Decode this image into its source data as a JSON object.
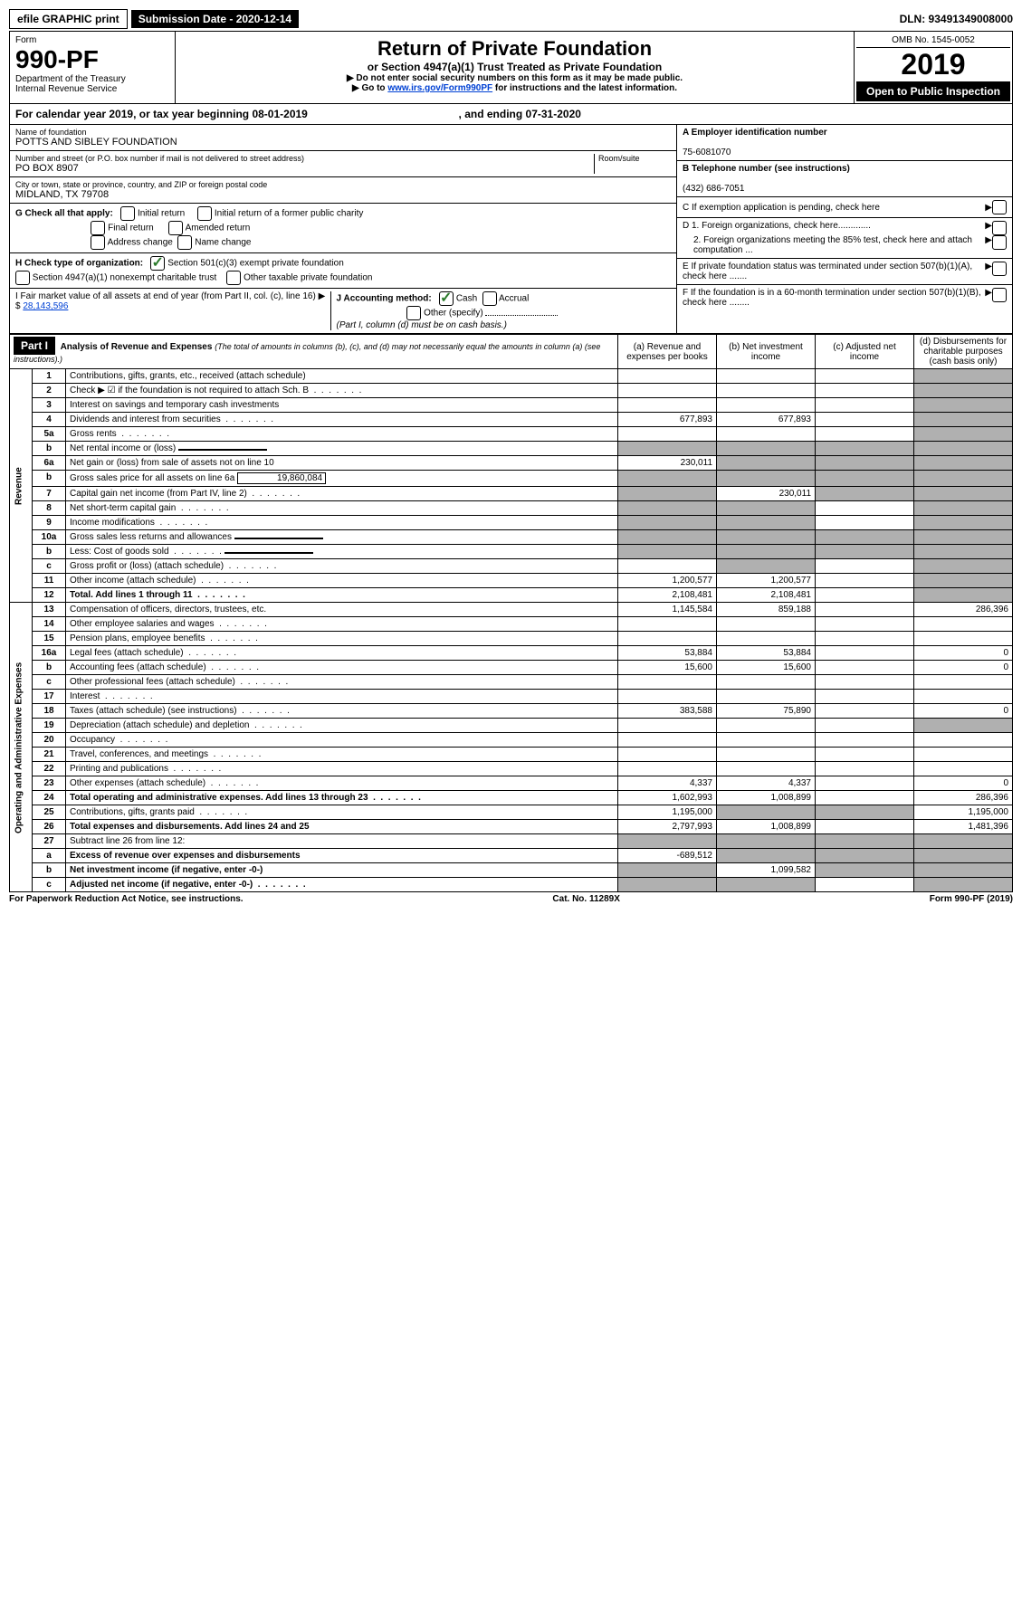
{
  "topbar": {
    "efile": "efile GRAPHIC print",
    "subdate_label": "Submission Date - 2020-12-14",
    "dln": "DLN: 93491349008000"
  },
  "header": {
    "form_label": "Form",
    "form_num": "990-PF",
    "dept": "Department of the Treasury",
    "irs": "Internal Revenue Service",
    "title": "Return of Private Foundation",
    "subtitle": "or Section 4947(a)(1) Trust Treated as Private Foundation",
    "note1": "▶ Do not enter social security numbers on this form as it may be made public.",
    "note2_pre": "▶ Go to ",
    "note2_link": "www.irs.gov/Form990PF",
    "note2_post": " for instructions and the latest information.",
    "omb": "OMB No. 1545-0052",
    "year": "2019",
    "open": "Open to Public Inspection"
  },
  "calendar": {
    "text_pre": "For calendar year 2019, or tax year beginning ",
    "begin": "08-01-2019",
    "mid": " , and ending ",
    "end": "07-31-2020"
  },
  "info": {
    "name_label": "Name of foundation",
    "name": "POTTS AND SIBLEY FOUNDATION",
    "addr_label": "Number and street (or P.O. box number if mail is not delivered to street address)",
    "room_label": "Room/suite",
    "addr": "PO BOX 8907",
    "city_label": "City or town, state or province, country, and ZIP or foreign postal code",
    "city": "MIDLAND, TX  79708",
    "A_label": "A Employer identification number",
    "A_val": "75-6081070",
    "B_label": "B Telephone number (see instructions)",
    "B_val": "(432) 686-7051",
    "C_label": "C If exemption application is pending, check here",
    "D1_label": "D 1. Foreign organizations, check here.............",
    "D2_label": "2. Foreign organizations meeting the 85% test, check here and attach computation ...",
    "E_label": "E If private foundation status was terminated under section 507(b)(1)(A), check here .......",
    "F_label": "F If the foundation is in a 60-month termination under section 507(b)(1)(B), check here ........"
  },
  "G": {
    "label": "G Check all that apply:",
    "opts": [
      "Initial return",
      "Final return",
      "Address change",
      "Initial return of a former public charity",
      "Amended return",
      "Name change"
    ]
  },
  "H": {
    "label": "H Check type of organization:",
    "opt1": "Section 501(c)(3) exempt private foundation",
    "opt2": "Section 4947(a)(1) nonexempt charitable trust",
    "opt3": "Other taxable private foundation"
  },
  "I": {
    "label": "I Fair market value of all assets at end of year (from Part II, col. (c), line 16) ▶ $",
    "val": "28,143,596"
  },
  "J": {
    "label": "J Accounting method:",
    "cash": "Cash",
    "accrual": "Accrual",
    "other": "Other (specify)",
    "note": "(Part I, column (d) must be on cash basis.)"
  },
  "part1": {
    "label": "Part I",
    "title": "Analysis of Revenue and Expenses",
    "title_note": "(The total of amounts in columns (b), (c), and (d) may not necessarily equal the amounts in column (a) (see instructions).)",
    "cols": {
      "a": "(a) Revenue and expenses per books",
      "b": "(b) Net investment income",
      "c": "(c) Adjusted net income",
      "d": "(d) Disbursements for charitable purposes (cash basis only)"
    }
  },
  "sections": {
    "revenue": "Revenue",
    "expenses": "Operating and Administrative Expenses"
  },
  "rows": [
    {
      "n": "1",
      "desc": "Contributions, gifts, grants, etc., received (attach schedule)",
      "a": "",
      "b": "",
      "c": "",
      "d": "shaded"
    },
    {
      "n": "2",
      "desc": "Check ▶ ☑ if the foundation is not required to attach Sch. B",
      "a": "",
      "b": "",
      "c": "",
      "d": "shaded",
      "dots": true
    },
    {
      "n": "3",
      "desc": "Interest on savings and temporary cash investments",
      "a": "",
      "b": "",
      "c": "",
      "d": "shaded"
    },
    {
      "n": "4",
      "desc": "Dividends and interest from securities",
      "a": "677,893",
      "b": "677,893",
      "c": "",
      "d": "shaded",
      "dots": true
    },
    {
      "n": "5a",
      "desc": "Gross rents",
      "a": "",
      "b": "",
      "c": "",
      "d": "shaded",
      "dots": true
    },
    {
      "n": "b",
      "desc": "Net rental income or (loss)",
      "a": "shaded",
      "b": "shaded",
      "c": "shaded",
      "d": "shaded",
      "inline": true
    },
    {
      "n": "6a",
      "desc": "Net gain or (loss) from sale of assets not on line 10",
      "a": "230,011",
      "b": "shaded",
      "c": "shaded",
      "d": "shaded"
    },
    {
      "n": "b",
      "desc": "Gross sales price for all assets on line 6a",
      "val": "19,860,084",
      "a": "shaded",
      "b": "shaded",
      "c": "shaded",
      "d": "shaded",
      "inline": true
    },
    {
      "n": "7",
      "desc": "Capital gain net income (from Part IV, line 2)",
      "a": "shaded",
      "b": "230,011",
      "c": "shaded",
      "d": "shaded",
      "dots": true
    },
    {
      "n": "8",
      "desc": "Net short-term capital gain",
      "a": "shaded",
      "b": "shaded",
      "c": "",
      "d": "shaded",
      "dots": true
    },
    {
      "n": "9",
      "desc": "Income modifications",
      "a": "shaded",
      "b": "shaded",
      "c": "",
      "d": "shaded",
      "dots": true
    },
    {
      "n": "10a",
      "desc": "Gross sales less returns and allowances",
      "a": "shaded",
      "b": "shaded",
      "c": "shaded",
      "d": "shaded",
      "inline": true
    },
    {
      "n": "b",
      "desc": "Less: Cost of goods sold",
      "a": "shaded",
      "b": "shaded",
      "c": "shaded",
      "d": "shaded",
      "inline": true,
      "dots": true
    },
    {
      "n": "c",
      "desc": "Gross profit or (loss) (attach schedule)",
      "a": "",
      "b": "shaded",
      "c": "",
      "d": "shaded",
      "dots": true
    },
    {
      "n": "11",
      "desc": "Other income (attach schedule)",
      "a": "1,200,577",
      "b": "1,200,577",
      "c": "",
      "d": "shaded",
      "dots": true
    },
    {
      "n": "12",
      "desc": "Total. Add lines 1 through 11",
      "a": "2,108,481",
      "b": "2,108,481",
      "c": "",
      "d": "shaded",
      "bold": true,
      "dots": true
    },
    {
      "n": "13",
      "desc": "Compensation of officers, directors, trustees, etc.",
      "a": "1,145,584",
      "b": "859,188",
      "c": "",
      "d": "286,396",
      "sec": "exp"
    },
    {
      "n": "14",
      "desc": "Other employee salaries and wages",
      "a": "",
      "b": "",
      "c": "",
      "d": "",
      "dots": true
    },
    {
      "n": "15",
      "desc": "Pension plans, employee benefits",
      "a": "",
      "b": "",
      "c": "",
      "d": "",
      "dots": true
    },
    {
      "n": "16a",
      "desc": "Legal fees (attach schedule)",
      "a": "53,884",
      "b": "53,884",
      "c": "",
      "d": "0",
      "dots": true
    },
    {
      "n": "b",
      "desc": "Accounting fees (attach schedule)",
      "a": "15,600",
      "b": "15,600",
      "c": "",
      "d": "0",
      "dots": true
    },
    {
      "n": "c",
      "desc": "Other professional fees (attach schedule)",
      "a": "",
      "b": "",
      "c": "",
      "d": "",
      "dots": true
    },
    {
      "n": "17",
      "desc": "Interest",
      "a": "",
      "b": "",
      "c": "",
      "d": "",
      "dots": true
    },
    {
      "n": "18",
      "desc": "Taxes (attach schedule) (see instructions)",
      "a": "383,588",
      "b": "75,890",
      "c": "",
      "d": "0",
      "dots": true
    },
    {
      "n": "19",
      "desc": "Depreciation (attach schedule) and depletion",
      "a": "",
      "b": "",
      "c": "",
      "d": "shaded",
      "dots": true
    },
    {
      "n": "20",
      "desc": "Occupancy",
      "a": "",
      "b": "",
      "c": "",
      "d": "",
      "dots": true
    },
    {
      "n": "21",
      "desc": "Travel, conferences, and meetings",
      "a": "",
      "b": "",
      "c": "",
      "d": "",
      "dots": true
    },
    {
      "n": "22",
      "desc": "Printing and publications",
      "a": "",
      "b": "",
      "c": "",
      "d": "",
      "dots": true
    },
    {
      "n": "23",
      "desc": "Other expenses (attach schedule)",
      "a": "4,337",
      "b": "4,337",
      "c": "",
      "d": "0",
      "dots": true
    },
    {
      "n": "24",
      "desc": "Total operating and administrative expenses. Add lines 13 through 23",
      "a": "1,602,993",
      "b": "1,008,899",
      "c": "",
      "d": "286,396",
      "bold": true,
      "dots": true
    },
    {
      "n": "25",
      "desc": "Contributions, gifts, grants paid",
      "a": "1,195,000",
      "b": "shaded",
      "c": "shaded",
      "d": "1,195,000",
      "dots": true
    },
    {
      "n": "26",
      "desc": "Total expenses and disbursements. Add lines 24 and 25",
      "a": "2,797,993",
      "b": "1,008,899",
      "c": "",
      "d": "1,481,396",
      "bold": true
    },
    {
      "n": "27",
      "desc": "Subtract line 26 from line 12:",
      "a": "shaded",
      "b": "shaded",
      "c": "shaded",
      "d": "shaded"
    },
    {
      "n": "a",
      "desc": "Excess of revenue over expenses and disbursements",
      "a": "-689,512",
      "b": "shaded",
      "c": "shaded",
      "d": "shaded",
      "bold": true
    },
    {
      "n": "b",
      "desc": "Net investment income (if negative, enter -0-)",
      "a": "shaded",
      "b": "1,099,582",
      "c": "shaded",
      "d": "shaded",
      "bold": true
    },
    {
      "n": "c",
      "desc": "Adjusted net income (if negative, enter -0-)",
      "a": "shaded",
      "b": "shaded",
      "c": "",
      "d": "shaded",
      "bold": true,
      "dots": true
    }
  ],
  "footer": {
    "left": "For Paperwork Reduction Act Notice, see instructions.",
    "center": "Cat. No. 11289X",
    "right": "Form 990-PF (2019)"
  }
}
